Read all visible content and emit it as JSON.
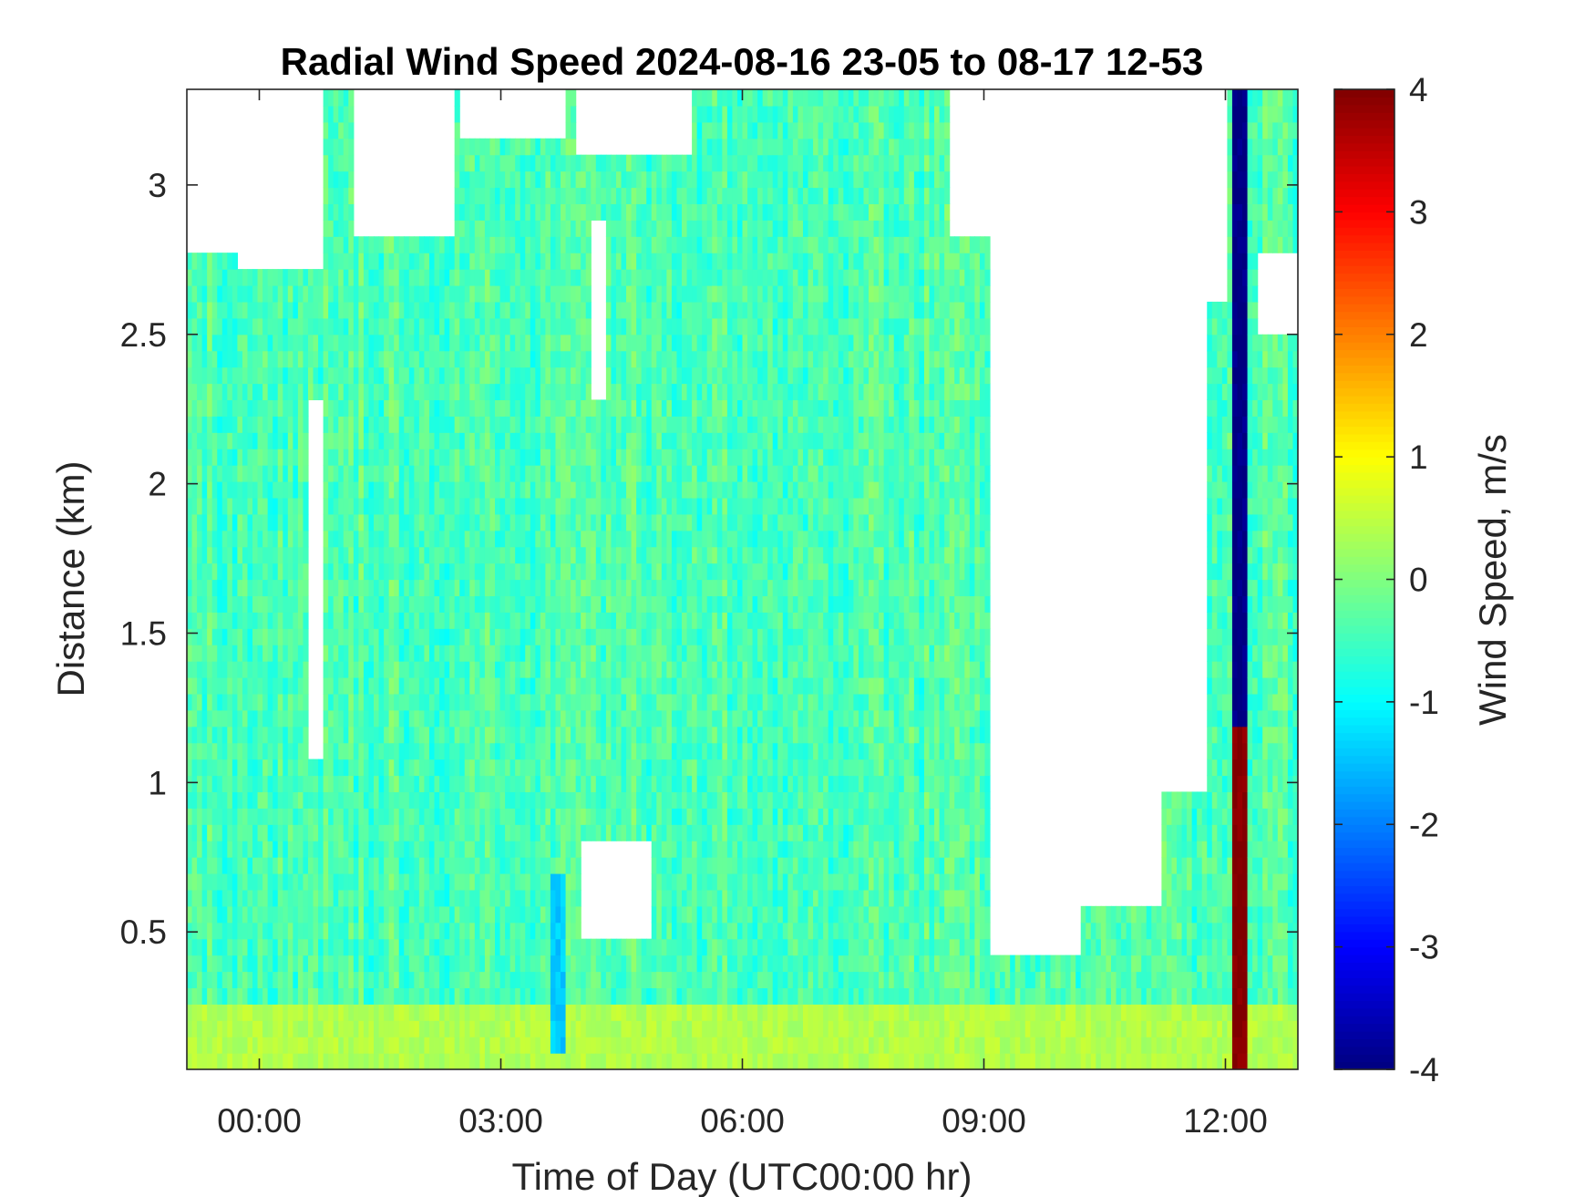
{
  "chart_data": {
    "type": "heatmap",
    "title": "Radial Wind Speed 2024-08-16 23-05 to 08-17 12-53",
    "xlabel": "Time of Day (UTC00:00 hr)",
    "ylabel": "Distance (km)",
    "colorbar_label": "Wind Speed, m/s",
    "colormap": "jet",
    "x_tick_labels": [
      "00:00",
      "03:00",
      "06:00",
      "09:00",
      "12:00"
    ],
    "x_tick_hours": [
      0,
      3,
      6,
      9,
      12
    ],
    "xlim_hours": [
      -0.9,
      12.9
    ],
    "y_ticks": [
      0.5,
      1,
      1.5,
      2,
      2.5,
      3
    ],
    "y_tick_labels": [
      "0.5",
      "1",
      "1.5",
      "2",
      "2.5",
      "3"
    ],
    "ylim_km": [
      0.04,
      3.32
    ],
    "clim": [
      -4,
      4
    ],
    "colorbar_ticks": [
      -4,
      -3,
      -2,
      -1,
      0,
      1,
      2,
      3,
      4
    ],
    "colorbar_tick_labels": [
      "-4",
      "-3",
      "-2",
      "-1",
      "0",
      "1",
      "2",
      "3",
      "4"
    ],
    "background_speed_ms": -0.4,
    "speed_features": [
      {
        "t_start": -0.9,
        "t_end": 12.9,
        "d_low": 0.04,
        "d_high": 0.25,
        "speed": 0.4
      },
      {
        "t_start": 3.6,
        "t_end": 3.8,
        "d_low": 0.1,
        "d_high": 0.7,
        "speed": -1.4
      },
      {
        "t_start": 12.1,
        "t_end": 12.3,
        "d_low": 0.04,
        "d_high": 2.0,
        "speed": 4.0
      },
      {
        "t_start": 12.1,
        "t_end": 12.3,
        "d_low": 1.2,
        "d_high": 3.32,
        "speed": -4.0
      }
    ],
    "no_data_regions": [
      {
        "t_start": -0.9,
        "t_end": -0.3,
        "d_low": 2.78,
        "d_high": 3.32
      },
      {
        "t_start": -0.3,
        "t_end": 0.8,
        "d_low": 2.72,
        "d_high": 3.32
      },
      {
        "t_start": 0.6,
        "t_end": 0.8,
        "d_low": 1.1,
        "d_high": 2.3
      },
      {
        "t_start": 1.2,
        "t_end": 2.4,
        "d_low": 2.85,
        "d_high": 3.32
      },
      {
        "t_start": 2.5,
        "t_end": 3.8,
        "d_low": 3.15,
        "d_high": 3.32
      },
      {
        "t_start": 3.9,
        "t_end": 5.4,
        "d_low": 3.08,
        "d_high": 3.32
      },
      {
        "t_start": 4.0,
        "t_end": 4.9,
        "d_low": 0.5,
        "d_high": 0.8
      },
      {
        "t_start": 4.1,
        "t_end": 4.3,
        "d_low": 2.3,
        "d_high": 2.9
      },
      {
        "t_start": 8.6,
        "t_end": 9.1,
        "d_low": 2.85,
        "d_high": 3.32
      },
      {
        "t_start": 9.1,
        "t_end": 10.2,
        "d_low": 0.4,
        "d_high": 3.32
      },
      {
        "t_start": 10.2,
        "t_end": 11.2,
        "d_low": 0.6,
        "d_high": 3.32
      },
      {
        "t_start": 11.2,
        "t_end": 11.8,
        "d_low": 0.95,
        "d_high": 3.32
      },
      {
        "t_start": 11.8,
        "t_end": 12.0,
        "d_low": 2.6,
        "d_high": 3.32
      },
      {
        "t_start": 12.4,
        "t_end": 12.9,
        "d_low": 2.5,
        "d_high": 2.75
      }
    ]
  }
}
